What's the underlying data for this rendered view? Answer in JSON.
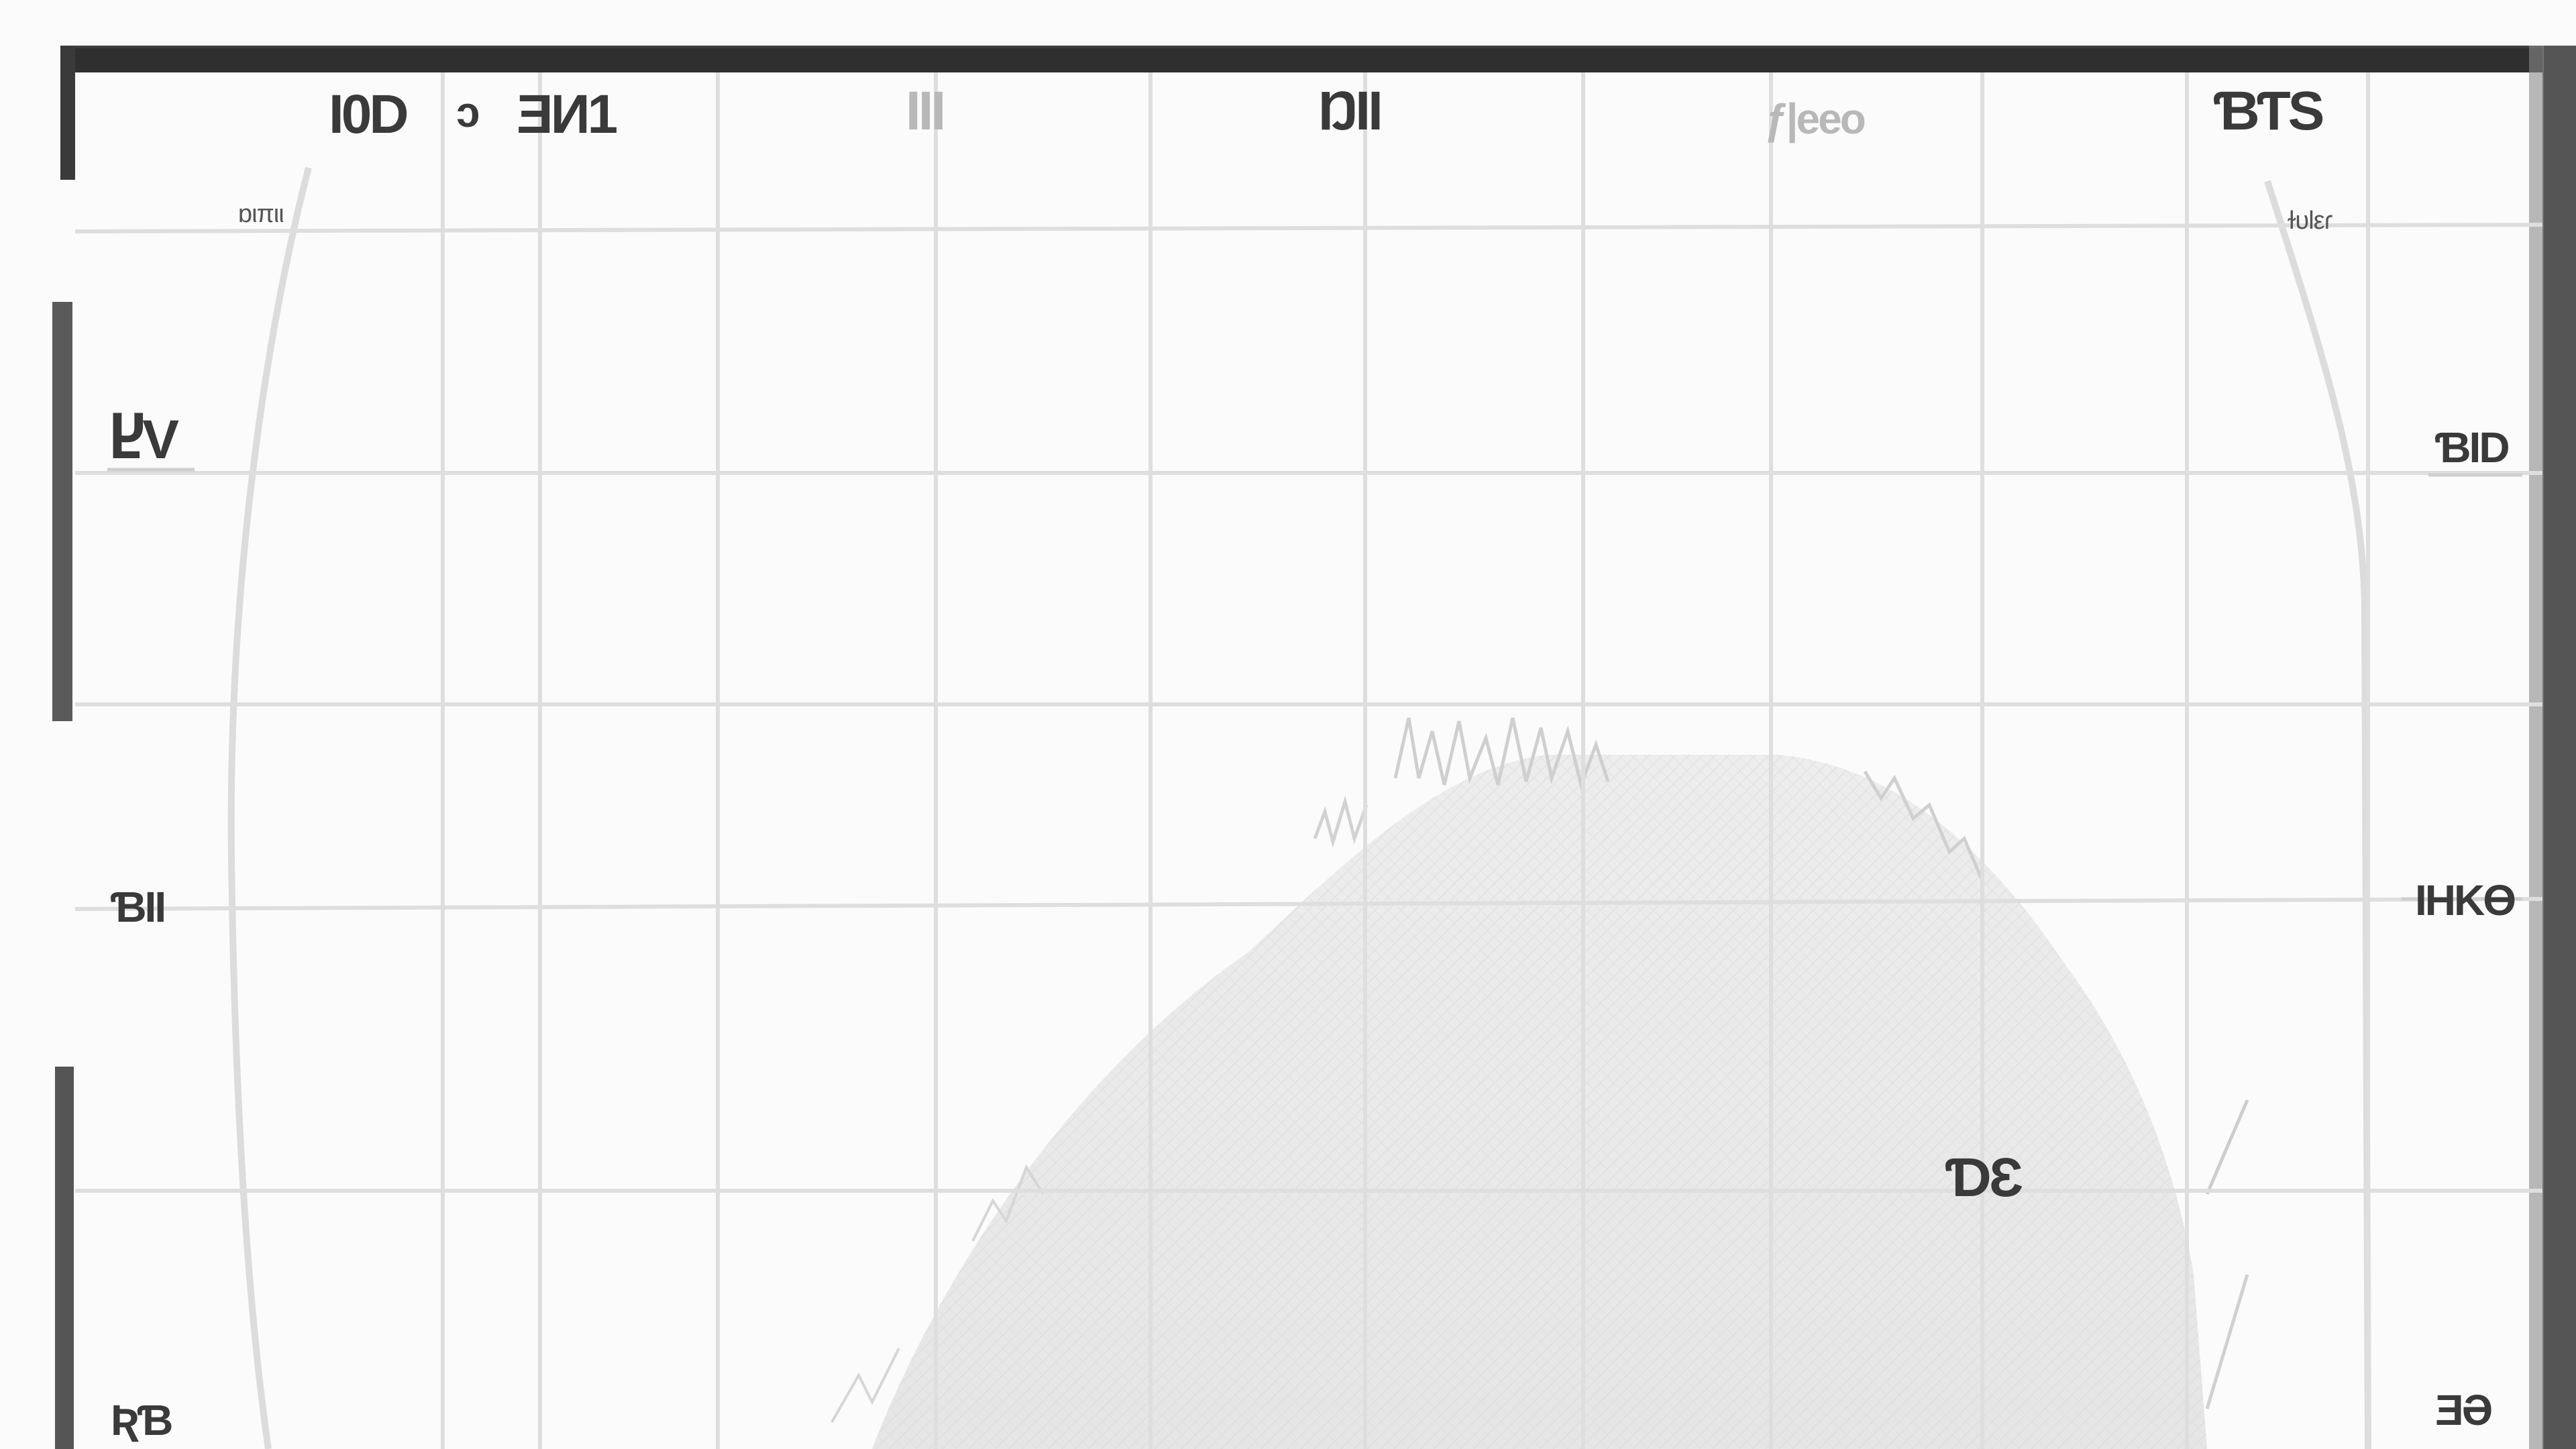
{
  "top_labels": [
    "I0D",
    "ↄ",
    "ƎИ1",
    "ΙΙΙ",
    "ŊII",
    "ƒ|eeo",
    "ƁƬS"
  ],
  "corner_labels": {
    "upper_left": "ɒιπιι",
    "upper_right": "ɫυlεɾ"
  },
  "left_labels": [
    "ႾV",
    "ƁII",
    "ƦƁ"
  ],
  "right_labels": [
    "ƁID",
    "IHKƟ",
    "ƎƏ"
  ],
  "inner_label": "ƊƐ"
}
